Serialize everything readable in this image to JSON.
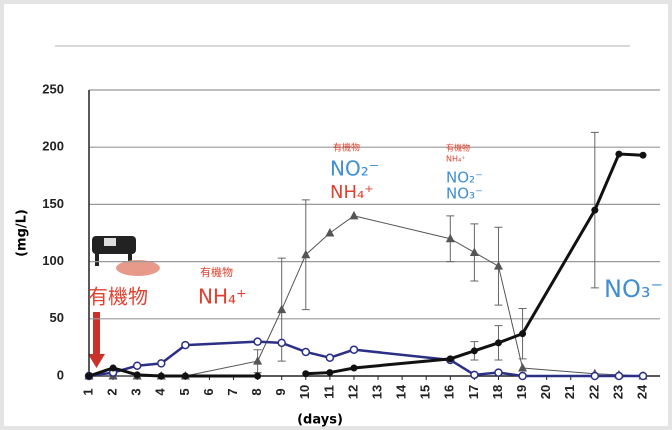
{
  "chart_data": {
    "type": "line",
    "x_label": "(days)",
    "y_label": "(mg/L)",
    "x": [
      1,
      2,
      3,
      4,
      5,
      8,
      9,
      10,
      11,
      12,
      16,
      17,
      18,
      19,
      22,
      23,
      24
    ],
    "xlim": [
      1,
      24
    ],
    "xticks": [
      1,
      2,
      3,
      4,
      5,
      6,
      7,
      8,
      9,
      10,
      11,
      12,
      13,
      14,
      15,
      16,
      17,
      18,
      19,
      20,
      21,
      22,
      23,
      24
    ],
    "ylim": [
      0,
      250
    ],
    "yticks": [
      0,
      50,
      100,
      150,
      200,
      250
    ],
    "grid": true,
    "series": [
      {
        "color": "#555555",
        "marker": "triangle",
        "values": [
          0,
          0,
          0,
          0,
          0,
          13,
          58,
          106,
          125,
          140,
          120,
          108,
          96,
          7,
          2,
          1,
          0
        ],
        "errors": [
          null,
          null,
          null,
          null,
          null,
          10,
          45,
          48,
          null,
          null,
          20,
          25,
          34,
          null,
          null,
          null,
          null
        ]
      },
      {
        "color": "#2b2f86",
        "marker": "open-circle",
        "values": [
          0,
          3,
          9,
          11,
          27,
          30,
          29,
          21,
          16,
          23,
          14,
          1,
          3,
          0,
          0,
          0,
          0
        ],
        "errors": [
          null,
          null,
          null,
          null,
          null,
          null,
          null,
          null,
          null,
          null,
          null,
          null,
          null,
          null,
          null,
          null,
          null
        ]
      },
      {
        "color": "#111111",
        "marker": "circle",
        "values": [
          0,
          7,
          1,
          0,
          0,
          0,
          null,
          2,
          3,
          7,
          15,
          22,
          29,
          37,
          145,
          194,
          193
        ],
        "errors": [
          null,
          null,
          null,
          null,
          null,
          null,
          null,
          null,
          null,
          null,
          null,
          8,
          15,
          22,
          68,
          null,
          null
        ]
      }
    ],
    "annotations": [
      "有機物",
      "有機物",
      "NH₄⁺",
      "有機物",
      "NO₂⁻",
      "NH₄⁺",
      "有機物",
      "NH₄⁺",
      "NO₂⁻",
      "NO₃⁻",
      "NO₃⁻"
    ]
  }
}
